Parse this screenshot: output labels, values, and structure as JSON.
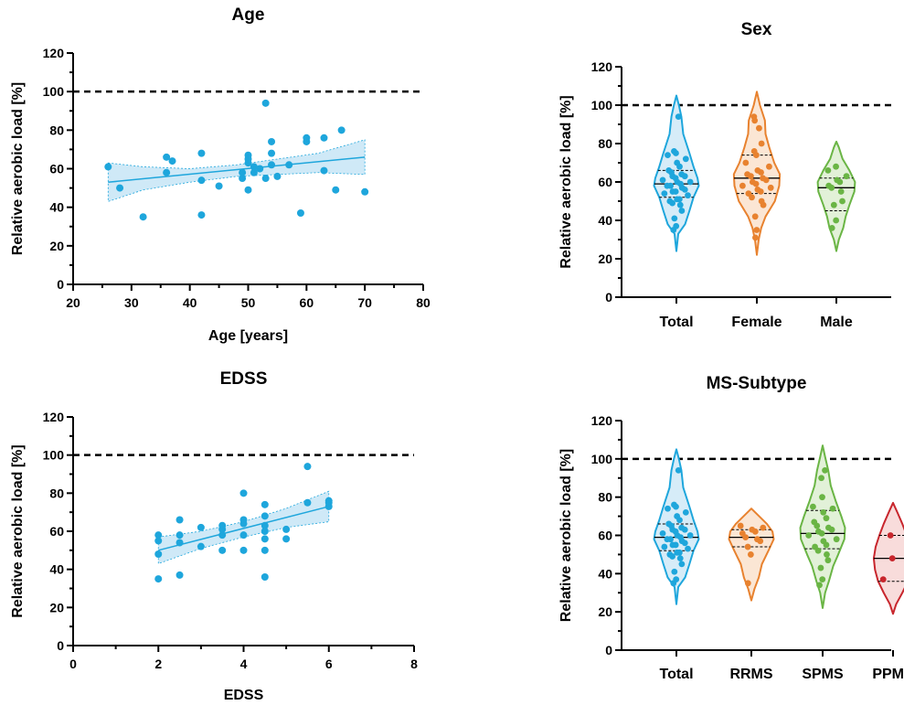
{
  "chart_data": [
    {
      "id": "age",
      "type": "scatter",
      "title": "Age",
      "xlabel": "Age [years]",
      "ylabel": "Relative aerobic load [%]",
      "xlim": [
        20,
        80
      ],
      "ylim": [
        0,
        120
      ],
      "xticks": [
        20,
        30,
        40,
        50,
        60,
        70,
        80
      ],
      "yticks": [
        0,
        20,
        40,
        60,
        80,
        100,
        120
      ],
      "reference_line": 100,
      "color": "#1ea6dc",
      "points": [
        [
          26,
          61
        ],
        [
          28,
          50
        ],
        [
          32,
          35
        ],
        [
          36,
          58
        ],
        [
          36,
          66
        ],
        [
          37,
          64
        ],
        [
          42,
          68
        ],
        [
          42,
          54
        ],
        [
          42,
          36
        ],
        [
          45,
          51
        ],
        [
          49,
          58
        ],
        [
          49,
          55
        ],
        [
          50,
          63
        ],
        [
          50,
          65
        ],
        [
          50,
          67
        ],
        [
          50,
          49
        ],
        [
          51,
          58
        ],
        [
          51,
          61
        ],
        [
          52,
          60
        ],
        [
          53,
          94
        ],
        [
          53,
          55
        ],
        [
          54,
          62
        ],
        [
          54,
          68
        ],
        [
          54,
          74
        ],
        [
          55,
          56
        ],
        [
          57,
          62
        ],
        [
          60,
          74
        ],
        [
          60,
          76
        ],
        [
          59,
          37
        ],
        [
          63,
          59
        ],
        [
          63,
          76
        ],
        [
          65,
          49
        ],
        [
          66,
          80
        ],
        [
          70,
          48
        ]
      ],
      "fit": {
        "x0": 26,
        "y0": 53,
        "x1": 70,
        "y1": 66
      },
      "ci": {
        "x": [
          26,
          32,
          40,
          48,
          55,
          62,
          70
        ],
        "lower": [
          43,
          49,
          53,
          56,
          57,
          58,
          57
        ],
        "upper": [
          63,
          61,
          60,
          62,
          65,
          68,
          75
        ]
      }
    },
    {
      "id": "edss",
      "type": "scatter",
      "title": "EDSS",
      "xlabel": "EDSS",
      "ylabel": "Relative aerobic load [%]",
      "xlim": [
        0,
        8
      ],
      "ylim": [
        0,
        120
      ],
      "xticks": [
        0,
        2,
        4,
        6,
        8
      ],
      "yticks": [
        0,
        20,
        40,
        60,
        80,
        100,
        120
      ],
      "reference_line": 100,
      "color": "#1ea6dc",
      "points": [
        [
          2,
          35
        ],
        [
          2,
          48
        ],
        [
          2,
          55
        ],
        [
          2,
          58
        ],
        [
          2.5,
          37
        ],
        [
          2.5,
          54
        ],
        [
          2.5,
          58
        ],
        [
          2.5,
          66
        ],
        [
          3,
          52
        ],
        [
          3,
          62
        ],
        [
          3.5,
          50
        ],
        [
          3.5,
          58
        ],
        [
          3.5,
          61
        ],
        [
          3.5,
          63
        ],
        [
          4,
          50
        ],
        [
          4,
          58
        ],
        [
          4,
          64
        ],
        [
          4,
          66
        ],
        [
          4,
          80
        ],
        [
          4.5,
          36
        ],
        [
          4.5,
          50
        ],
        [
          4.5,
          56
        ],
        [
          4.5,
          60
        ],
        [
          4.5,
          63
        ],
        [
          4.5,
          68
        ],
        [
          4.5,
          74
        ],
        [
          5,
          56
        ],
        [
          5,
          61
        ],
        [
          5.5,
          75
        ],
        [
          5.5,
          94
        ],
        [
          6,
          73
        ],
        [
          6,
          75
        ],
        [
          6,
          76
        ]
      ],
      "fit": {
        "x0": 2,
        "y0": 50,
        "x1": 6,
        "y1": 73
      },
      "ci": {
        "x": [
          2,
          3,
          4,
          5,
          6
        ],
        "lower": [
          43,
          51,
          57,
          62,
          65
        ],
        "upper": [
          57,
          60,
          65,
          72,
          81
        ]
      }
    },
    {
      "id": "sex",
      "type": "violin",
      "title": "Sex",
      "ylabel": "Relative aerobic load [%]",
      "ylim": [
        0,
        120
      ],
      "yticks": [
        0,
        20,
        40,
        60,
        80,
        100,
        120
      ],
      "reference_line": 100,
      "categories": [
        "Total",
        "Female",
        "Male"
      ],
      "series": [
        {
          "category": "Total",
          "color": "#1ea6dc",
          "fill": "#d6ecf8",
          "median": 59,
          "q1": 52,
          "q3": 66,
          "profile": [
            [
              24,
              0
            ],
            [
              33,
              0.06
            ],
            [
              38,
              0.28
            ],
            [
              45,
              0.42
            ],
            [
              52,
              0.55
            ],
            [
              58,
              0.72
            ],
            [
              62,
              0.68
            ],
            [
              68,
              0.55
            ],
            [
              75,
              0.42
            ],
            [
              85,
              0.22
            ],
            [
              94,
              0.16
            ],
            [
              100,
              0.08
            ],
            [
              105,
              0
            ]
          ],
          "points": [
            35,
            37,
            41,
            45,
            48,
            49,
            50,
            51,
            51,
            53,
            54,
            55,
            55,
            56,
            57,
            58,
            58,
            59,
            60,
            60,
            61,
            62,
            63,
            63,
            64,
            65,
            66,
            68,
            70,
            72,
            74,
            75,
            76,
            94
          ]
        },
        {
          "category": "Female",
          "color": "#e8822f",
          "fill": "#fbe6d4",
          "median": 62,
          "q1": 54,
          "q3": 74,
          "profile": [
            [
              22,
              0
            ],
            [
              30,
              0.06
            ],
            [
              36,
              0.14
            ],
            [
              42,
              0.28
            ],
            [
              50,
              0.58
            ],
            [
              58,
              0.72
            ],
            [
              64,
              0.74
            ],
            [
              70,
              0.56
            ],
            [
              78,
              0.4
            ],
            [
              85,
              0.28
            ],
            [
              92,
              0.26
            ],
            [
              100,
              0.1
            ],
            [
              107,
              0
            ]
          ],
          "points": [
            31,
            35,
            42,
            48,
            50,
            52,
            54,
            55,
            56,
            57,
            58,
            59,
            60,
            61,
            62,
            63,
            64,
            65,
            66,
            68,
            70,
            74,
            76,
            80,
            88,
            92,
            94
          ]
        },
        {
          "category": "Male",
          "color": "#6ab545",
          "fill": "#e2f1d8",
          "median": 57,
          "q1": 45,
          "q3": 62,
          "profile": [
            [
              24,
              0
            ],
            [
              30,
              0.08
            ],
            [
              36,
              0.22
            ],
            [
              42,
              0.3
            ],
            [
              48,
              0.42
            ],
            [
              55,
              0.58
            ],
            [
              60,
              0.6
            ],
            [
              66,
              0.42
            ],
            [
              72,
              0.2
            ],
            [
              78,
              0.08
            ],
            [
              81,
              0
            ]
          ],
          "points": [
            36,
            40,
            48,
            50,
            55,
            57,
            58,
            60,
            61,
            63,
            66,
            68
          ]
        }
      ]
    },
    {
      "id": "subtype",
      "type": "violin",
      "title": "MS-Subtype",
      "ylabel": "Relative aerobic load [%]",
      "ylim": [
        0,
        120
      ],
      "yticks": [
        0,
        20,
        40,
        60,
        80,
        100,
        120
      ],
      "reference_line": 100,
      "categories": [
        "Total",
        "RRMS",
        "SPMS",
        "PPMS"
      ],
      "series": [
        {
          "category": "Total",
          "color": "#1ea6dc",
          "fill": "#d6ecf8",
          "median": 59,
          "q1": 52,
          "q3": 66,
          "profile": [
            [
              24,
              0
            ],
            [
              33,
              0.06
            ],
            [
              38,
              0.28
            ],
            [
              45,
              0.42
            ],
            [
              52,
              0.55
            ],
            [
              58,
              0.72
            ],
            [
              62,
              0.68
            ],
            [
              68,
              0.55
            ],
            [
              75,
              0.42
            ],
            [
              85,
              0.22
            ],
            [
              94,
              0.16
            ],
            [
              100,
              0.08
            ],
            [
              105,
              0
            ]
          ],
          "points": [
            35,
            37,
            41,
            45,
            48,
            49,
            50,
            51,
            51,
            53,
            54,
            55,
            55,
            56,
            57,
            58,
            58,
            59,
            60,
            60,
            61,
            62,
            63,
            63,
            64,
            65,
            66,
            68,
            70,
            72,
            74,
            75,
            76,
            94
          ]
        },
        {
          "category": "RRMS",
          "color": "#e8822f",
          "fill": "#fbe6d4",
          "median": 59,
          "q1": 54,
          "q3": 63,
          "profile": [
            [
              26,
              0
            ],
            [
              32,
              0.1
            ],
            [
              38,
              0.24
            ],
            [
              45,
              0.34
            ],
            [
              52,
              0.55
            ],
            [
              58,
              0.72
            ],
            [
              62,
              0.68
            ],
            [
              66,
              0.5
            ],
            [
              70,
              0.25
            ],
            [
              74,
              0
            ]
          ],
          "points": [
            35,
            50,
            54,
            57,
            58,
            59,
            61,
            62,
            63,
            64,
            65
          ]
        },
        {
          "category": "SPMS",
          "color": "#6ab545",
          "fill": "#e2f1d8",
          "median": 61,
          "q1": 53,
          "q3": 73,
          "profile": [
            [
              22,
              0
            ],
            [
              30,
              0.08
            ],
            [
              36,
              0.2
            ],
            [
              44,
              0.34
            ],
            [
              50,
              0.5
            ],
            [
              58,
              0.7
            ],
            [
              64,
              0.72
            ],
            [
              70,
              0.6
            ],
            [
              78,
              0.42
            ],
            [
              86,
              0.26
            ],
            [
              94,
              0.18
            ],
            [
              101,
              0.08
            ],
            [
              107,
              0
            ]
          ],
          "points": [
            34,
            37,
            43,
            47,
            50,
            52,
            54,
            55,
            57,
            58,
            60,
            61,
            62,
            63,
            64,
            65,
            67,
            69,
            72,
            74,
            75,
            80,
            90,
            94
          ]
        },
        {
          "category": "PPMS",
          "color": "#c8262d",
          "fill": "#f8dcdb",
          "median": 48,
          "q1": 36,
          "q3": 60,
          "profile": [
            [
              19,
              0
            ],
            [
              24,
              0.1
            ],
            [
              30,
              0.3
            ],
            [
              36,
              0.48
            ],
            [
              42,
              0.58
            ],
            [
              48,
              0.62
            ],
            [
              54,
              0.56
            ],
            [
              60,
              0.44
            ],
            [
              66,
              0.3
            ],
            [
              72,
              0.14
            ],
            [
              77,
              0
            ]
          ],
          "points": [
            37,
            48,
            60
          ]
        }
      ]
    }
  ]
}
